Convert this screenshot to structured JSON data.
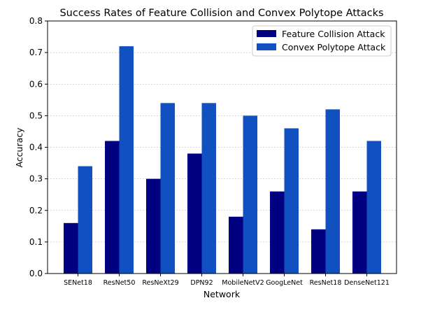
{
  "chart_data": {
    "type": "bar",
    "title": "Success Rates of Feature Collision and Convex Polytope Attacks",
    "xlabel": "Network",
    "ylabel": "Accuracy",
    "ylim": [
      0,
      0.8
    ],
    "yticks": [
      "0.0",
      "0.1",
      "0.2",
      "0.3",
      "0.4",
      "0.5",
      "0.6",
      "0.7",
      "0.8"
    ],
    "grid": "horizontal-dashed",
    "legend_position": "top-right",
    "categories": [
      "SENet18",
      "ResNet50",
      "ResNeXt29",
      "DPN92",
      "MobileNetV2",
      "GoogLeNet",
      "ResNet18",
      "DenseNet121"
    ],
    "series": [
      {
        "name": "Feature Collision Attack",
        "color": "#000080",
        "values": [
          0.16,
          0.42,
          0.3,
          0.38,
          0.18,
          0.26,
          0.14,
          0.26
        ]
      },
      {
        "name": "Convex Polytope Attack",
        "color": "#1050c0",
        "values": [
          0.34,
          0.72,
          0.54,
          0.54,
          0.5,
          0.46,
          0.52,
          0.42
        ]
      }
    ]
  }
}
